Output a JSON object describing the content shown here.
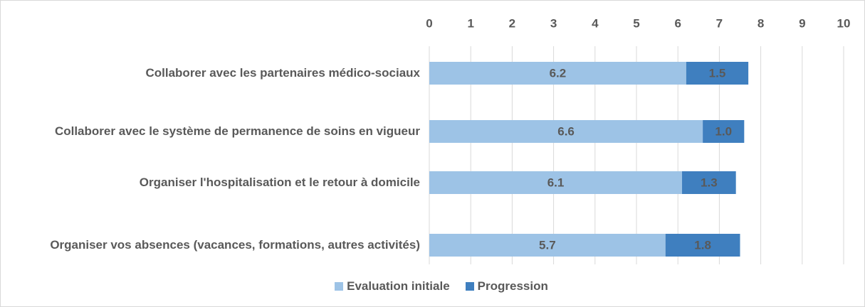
{
  "chart_data": {
    "type": "stacked_bar_horizontal",
    "categories": [
      "Collaborer avec les partenaires médico-sociaux",
      "Collaborer avec le système de permanence de soins en vigueur",
      "Organiser l'hospitalisation et le retour à domicile",
      "Organiser vos absences (vacances, formations, autres activités)"
    ],
    "series": [
      {
        "name": "Evaluation initiale",
        "color": "#9dc3e6",
        "values": [
          6.2,
          6.6,
          6.1,
          5.7
        ]
      },
      {
        "name": "Progression",
        "color": "#3f7fbf",
        "values": [
          1.5,
          1.0,
          1.3,
          1.8
        ],
        "value_labels": [
          "1.5",
          "1.0",
          "1.3",
          "1.8"
        ]
      }
    ],
    "xlim": [
      0,
      10
    ],
    "xticks": [
      0,
      1,
      2,
      3,
      4,
      5,
      6,
      7,
      8,
      9,
      10
    ],
    "grid": true,
    "legend": "bottom"
  }
}
